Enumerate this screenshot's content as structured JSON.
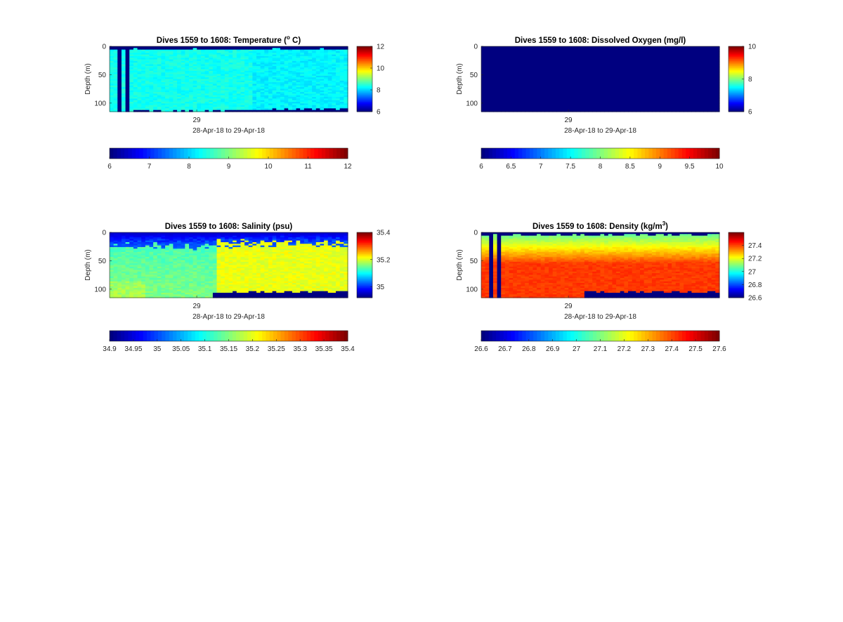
{
  "chart_data": [
    {
      "type": "heatmap",
      "title_prefix": "Dives 1559 to 1608: Temperature (",
      "title_sup": "o",
      "title_suffix": " C)",
      "ylabel": "Depth (m)",
      "xlabel": "28-Apr-18 to 29-Apr-18",
      "x_ticks": [
        "29"
      ],
      "y_ticks": [
        0,
        50,
        100
      ],
      "ylim": [
        0,
        115
      ],
      "clim": [
        6,
        12
      ],
      "colorbar_ticks": [
        6,
        8,
        10,
        12
      ],
      "hcolorbar_ticks": [
        6,
        7,
        8,
        9,
        10,
        11,
        12
      ],
      "field": {
        "base": 8.3,
        "surface_value": 6,
        "surface_depth": 4,
        "bottom_value": 6,
        "bottom_depth_left": 114,
        "bottom_depth_right": 109,
        "gap_columns": [
          2,
          4
        ]
      }
    },
    {
      "type": "heatmap",
      "title_prefix": "Dives 1559 to 1608: Dissolved Oxygen (mg/l)",
      "title_sup": "",
      "title_suffix": "",
      "ylabel": "Depth (m)",
      "xlabel": "28-Apr-18 to 29-Apr-18",
      "x_ticks": [
        "29"
      ],
      "y_ticks": [
        0,
        50,
        100
      ],
      "ylim": [
        0,
        115
      ],
      "clim": [
        6,
        10
      ],
      "colorbar_ticks": [
        6,
        8,
        10
      ],
      "hcolorbar_ticks": [
        6,
        6.5,
        7,
        7.5,
        8,
        8.5,
        9,
        9.5,
        10
      ],
      "field": {
        "uniform": 6
      }
    },
    {
      "type": "heatmap",
      "title_prefix": "Dives 1559 to 1608: Salinity (psu)",
      "title_sup": "",
      "title_suffix": "",
      "ylabel": "Depth (m)",
      "xlabel": "28-Apr-18 to 29-Apr-18",
      "x_ticks": [
        "29"
      ],
      "y_ticks": [
        0,
        50,
        100
      ],
      "ylim": [
        0,
        115
      ],
      "clim": [
        34.92,
        35.4
      ],
      "colorbar_ticks": [
        35,
        35.2,
        35.4
      ],
      "hcolorbar_ticks": [
        "34.9",
        "34.95",
        "35",
        "35.05",
        "35.1",
        "35.15",
        "35.2",
        "35.25",
        "35.3",
        "35.35",
        "35.4"
      ],
      "field": {
        "surface_value": 34.95,
        "deep_value": 35.21,
        "bottom_value": 34.92,
        "bottom_depth_left": 115,
        "bottom_depth_right": 104
      }
    },
    {
      "type": "heatmap",
      "title_prefix": "Dives 1559 to 1608: Density (kg/m",
      "title_sup": "3",
      "title_suffix": ")",
      "ylabel": "Depth (m)",
      "xlabel": "28-Apr-18 to 29-Apr-18",
      "x_ticks": [
        "29"
      ],
      "y_ticks": [
        0,
        50,
        100
      ],
      "ylim": [
        0,
        115
      ],
      "clim": [
        26.6,
        27.6
      ],
      "colorbar_ticks": [
        26.6,
        26.8,
        27,
        27.2,
        27.4
      ],
      "hcolorbar_ticks": [
        "26.6",
        "26.7",
        "26.8",
        "26.9",
        "27",
        "27.1",
        "27.2",
        "27.3",
        "27.4",
        "27.5",
        "27.6"
      ],
      "hcolorbar_clim": [
        26.6,
        27.6
      ],
      "field": {
        "surface_value": 27.05,
        "deep_value": 27.42,
        "bottom_value": 26.6,
        "bottom_depth_left": 115,
        "bottom_depth_right": 104,
        "gap_columns": [
          2,
          4
        ]
      }
    }
  ]
}
